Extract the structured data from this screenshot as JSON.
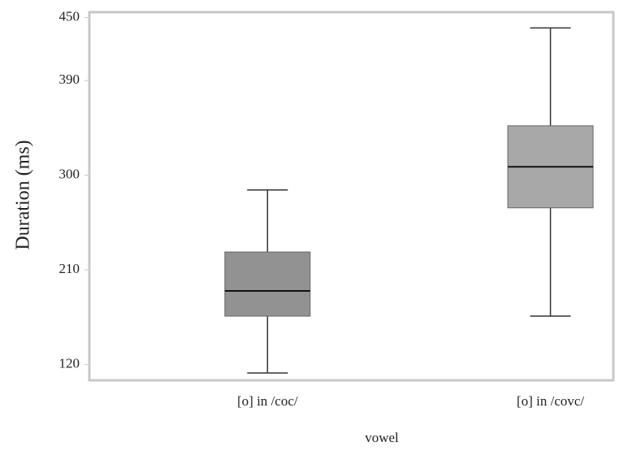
{
  "chart_data": {
    "type": "box",
    "categories": [
      "[o] in /coc/",
      "[o] in /covc/"
    ],
    "boxes": [
      {
        "min": 112,
        "q1": 166,
        "median": 190,
        "q3": 227,
        "max": 286,
        "color": "#7f7f7f"
      },
      {
        "min": 166,
        "q1": 269,
        "median": 308,
        "q3": 347,
        "max": 440,
        "color": "#999999"
      }
    ],
    "x_label": "vowel",
    "y_label": "Duration (ms)",
    "ylim": [
      105,
      455
    ],
    "yticks": [
      120,
      210,
      300,
      390,
      450
    ]
  }
}
